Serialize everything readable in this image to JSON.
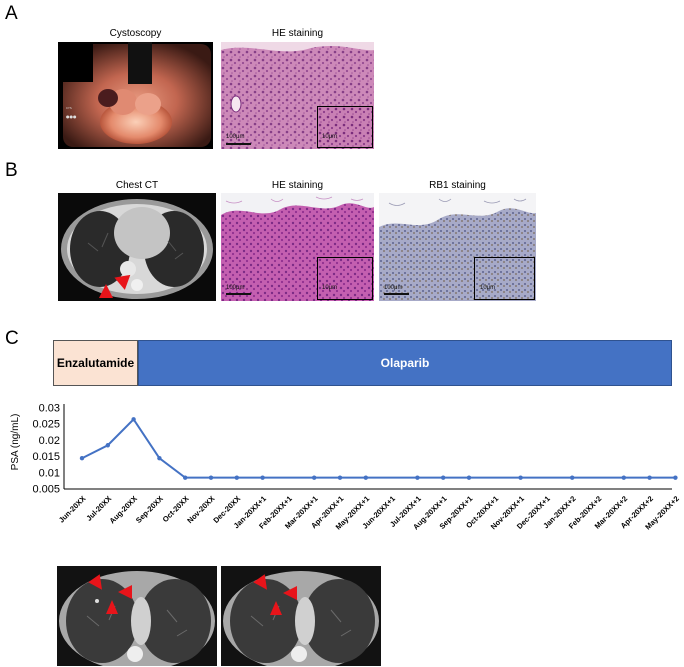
{
  "panels": {
    "a": {
      "letter": "A",
      "cystoscopy_label": "Cystoscopy",
      "he_label": "HE staining",
      "scale": "100μm",
      "inset_scale": "10μm"
    },
    "b": {
      "letter": "B",
      "ct_label": "Chest CT",
      "he_label": "HE staining",
      "rb1_label": "RB1 staining",
      "scale": "100μm",
      "inset_scale": "10μm"
    },
    "c": {
      "letter": "C",
      "treatments": [
        {
          "label": "Enzalutamide",
          "color": "#fbe3d3"
        },
        {
          "label": "Olaparib",
          "color": "#4472c4"
        }
      ]
    }
  },
  "chart_data": {
    "type": "line",
    "ylabel": "PSA (ng/mL)",
    "ylim": [
      0.005,
      0.03
    ],
    "yticks": [
      "0.03",
      "0.025",
      "0.02",
      "0.015",
      "0.01",
      "0.005"
    ],
    "categories": [
      "Jun-20XX",
      "Jul-20XX",
      "Aug-20XX",
      "Sep-20XX",
      "Oct-20XX",
      "Nov-20XX",
      "Dec-20XX",
      "Jan-20XX+1",
      "Feb-20XX+1",
      "Mar-20XX+1",
      "Apr-20XX+1",
      "May-20XX+1",
      "Jun-20XX+1",
      "Jul-20XX+1",
      "Aug-20XX+1",
      "Sep-20XX+1",
      "Oct-20XX+1",
      "Nov-20XX+1",
      "Dec-20XX+1",
      "Jan-20XX+2",
      "Feb-20XX+2",
      "Mar-20XX+2",
      "Apr-20XX+2",
      "May-20XX+2"
    ],
    "series": [
      {
        "color": "#4472c4",
        "points": [
          {
            "x": 0,
            "y": 0.0145
          },
          {
            "x": 1,
            "y": 0.0185
          },
          {
            "x": 2,
            "y": 0.0265
          },
          {
            "x": 3,
            "y": 0.0145
          },
          {
            "x": 4,
            "y": 0.0085
          },
          {
            "x": 5,
            "y": 0.0085
          },
          {
            "x": 6,
            "y": 0.0085
          },
          {
            "x": 7,
            "y": 0.0085
          },
          {
            "x": 9,
            "y": 0.0085
          },
          {
            "x": 10,
            "y": 0.0085
          },
          {
            "x": 11,
            "y": 0.0085
          },
          {
            "x": 13,
            "y": 0.0085
          },
          {
            "x": 14,
            "y": 0.0085
          },
          {
            "x": 15,
            "y": 0.0085
          },
          {
            "x": 17,
            "y": 0.0085
          },
          {
            "x": 19,
            "y": 0.0085
          },
          {
            "x": 21,
            "y": 0.0085
          },
          {
            "x": 22,
            "y": 0.0085
          },
          {
            "x": 23,
            "y": 0.0085
          }
        ]
      }
    ]
  }
}
